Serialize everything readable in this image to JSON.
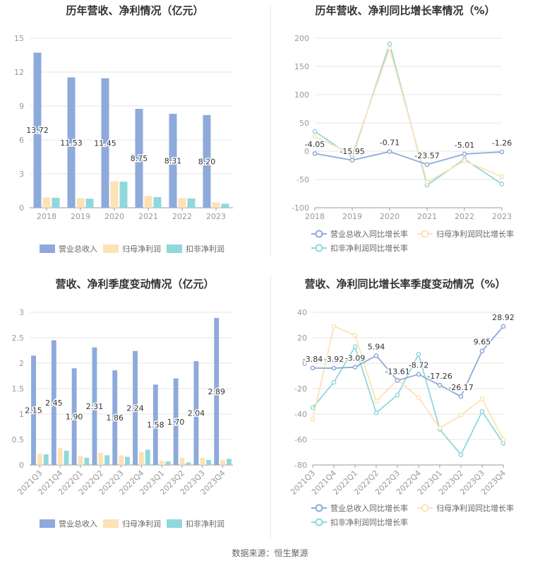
{
  "source": "数据来源：恒生聚源",
  "chart_data": [
    {
      "id": "annual-revenue-profit",
      "type": "bar",
      "title": "历年营收、净利情况（亿元）",
      "categories": [
        "2018",
        "2019",
        "2020",
        "2021",
        "2022",
        "2023"
      ],
      "ylim": [
        0,
        15
      ],
      "yticks": [
        0,
        3,
        6,
        9,
        12,
        15
      ],
      "colors": [
        "#8eaadb",
        "#fde2b5",
        "#8fd8db"
      ],
      "series": [
        {
          "name": "营业总收入",
          "values": [
            13.72,
            11.53,
            11.45,
            8.75,
            8.31,
            8.2
          ],
          "labels": [
            "13.72",
            "11.53",
            "11.45",
            "8.75",
            "8.31",
            "8.20"
          ]
        },
        {
          "name": "归母净利润",
          "values": [
            0.9,
            0.85,
            2.35,
            1.05,
            0.85,
            0.48
          ]
        },
        {
          "name": "扣非净利润",
          "values": [
            0.88,
            0.8,
            2.3,
            0.95,
            0.82,
            0.36
          ]
        }
      ]
    },
    {
      "id": "annual-growth-rate",
      "type": "line",
      "title": "历年营收、净利同比增长率情况（%）",
      "categories": [
        "2018",
        "2019",
        "2020",
        "2021",
        "2022",
        "2023"
      ],
      "ylim": [
        -100,
        200
      ],
      "yticks": [
        -100,
        -50,
        0,
        50,
        100,
        150,
        200
      ],
      "colors": [
        "#8eaadb",
        "#fde2b5",
        "#8fd8db"
      ],
      "series": [
        {
          "name": "营业总收入同比增长率",
          "values": [
            -4.05,
            -15.95,
            -0.71,
            -23.57,
            -5.01,
            -1.26
          ],
          "labels": [
            "-4.05",
            "-15.95",
            "-0.71",
            "-23.57",
            "-5.01",
            "-1.26"
          ]
        },
        {
          "name": "归母净利润同比增长率",
          "values": [
            26,
            -5,
            182,
            -55,
            -17,
            -45
          ]
        },
        {
          "name": "扣非净利润同比增长率",
          "values": [
            35,
            -10,
            190,
            -60,
            -14,
            -58
          ]
        }
      ]
    },
    {
      "id": "quarterly-revenue-profit",
      "type": "bar",
      "title": "营收、净利季度变动情况（亿元）",
      "categories": [
        "2021Q3",
        "2021Q4",
        "2022Q1",
        "2022Q2",
        "2022Q3",
        "2022Q4",
        "2023Q1",
        "2023Q2",
        "2023Q3",
        "2023Q4"
      ],
      "ylim": [
        0,
        3
      ],
      "yticks": [
        0,
        0.5,
        1,
        1.5,
        2,
        2.5,
        3
      ],
      "colors": [
        "#8eaadb",
        "#fde2b5",
        "#8fd8db"
      ],
      "series": [
        {
          "name": "营业总收入",
          "values": [
            2.15,
            2.45,
            1.9,
            2.31,
            1.86,
            2.24,
            1.58,
            1.7,
            2.04,
            2.89
          ],
          "labels": [
            "2.15",
            "2.45",
            "1.90",
            "2.31",
            "1.86",
            "2.24",
            "1.58",
            "1.70",
            "2.04",
            "2.89"
          ]
        },
        {
          "name": "归母净利润",
          "values": [
            0.22,
            0.33,
            0.17,
            0.24,
            0.19,
            0.25,
            0.08,
            0.14,
            0.14,
            0.1
          ]
        },
        {
          "name": "扣非净利润",
          "values": [
            0.21,
            0.28,
            0.14,
            0.19,
            0.16,
            0.3,
            0.07,
            0.05,
            0.1,
            0.12
          ]
        }
      ]
    },
    {
      "id": "quarterly-growth-rate",
      "type": "line",
      "title": "营收、净利同比增长率季度变动情况（%）",
      "categories": [
        "2021Q3",
        "2021Q4",
        "2022Q1",
        "2022Q2",
        "2022Q3",
        "2022Q4",
        "2023Q1",
        "2023Q2",
        "2023Q3",
        "2023Q4"
      ],
      "ylim": [
        -80,
        40
      ],
      "yticks": [
        -80,
        -60,
        -40,
        -20,
        0,
        20,
        40
      ],
      "colors": [
        "#8eaadb",
        "#fde2b5",
        "#8fd8db"
      ],
      "series": [
        {
          "name": "营业总收入同比增长率",
          "values": [
            -3.84,
            -3.92,
            -3.09,
            5.94,
            -13.61,
            -8.72,
            -17.26,
            -26.17,
            9.65,
            28.92
          ],
          "labels": [
            "-3.84",
            "-3.92",
            "-3.09",
            "5.94",
            "-13.61",
            "-8.72",
            "-17.26",
            "-26.17",
            "9.65",
            "28.92"
          ]
        },
        {
          "name": "归母净利润同比增长率",
          "values": [
            -44,
            29,
            22,
            -30,
            -13,
            -27,
            -51,
            -41,
            -28,
            -60
          ]
        },
        {
          "name": "扣非净利润同比增长率",
          "values": [
            -35,
            -15,
            13,
            -39,
            -25,
            7,
            -52,
            -72,
            -38,
            -63
          ]
        }
      ]
    }
  ]
}
